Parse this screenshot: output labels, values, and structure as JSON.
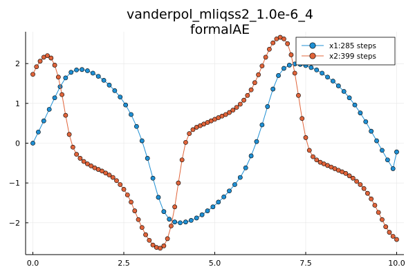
{
  "chart_data": {
    "type": "scatter",
    "title": "vanderpol_mliqss2_1.0e-6_4",
    "subtitle": "formalAE",
    "xlabel": "",
    "ylabel": "",
    "xlim": [
      -0.2,
      10.2
    ],
    "ylim": [
      -2.8,
      2.8
    ],
    "x_ticks": [
      0.0,
      2.5,
      5.0,
      7.5,
      10.0
    ],
    "x_tick_labels": [
      "0.0",
      "2.5",
      "5.0",
      "7.5",
      "10.0"
    ],
    "y_ticks": [
      -2,
      -1,
      0,
      1,
      2
    ],
    "y_tick_labels": [
      "−2",
      "−1",
      "0",
      "1",
      "2"
    ],
    "grid": true,
    "legend_position": "top-right",
    "series": [
      {
        "name": "x1:285 steps",
        "color": "#1f8fd3",
        "x": [
          0.0,
          0.15,
          0.3,
          0.45,
          0.6,
          0.75,
          0.9,
          1.05,
          1.2,
          1.35,
          1.5,
          1.65,
          1.8,
          1.95,
          2.1,
          2.25,
          2.4,
          2.55,
          2.7,
          2.85,
          3.0,
          3.15,
          3.3,
          3.45,
          3.6,
          3.75,
          3.9,
          4.05,
          4.2,
          4.35,
          4.5,
          4.65,
          4.8,
          4.95,
          5.1,
          5.25,
          5.4,
          5.55,
          5.7,
          5.85,
          6.0,
          6.15,
          6.3,
          6.45,
          6.6,
          6.75,
          6.9,
          7.05,
          7.2,
          7.35,
          7.5,
          7.65,
          7.8,
          7.95,
          8.1,
          8.25,
          8.4,
          8.55,
          8.7,
          8.85,
          9.0,
          9.15,
          9.3,
          9.45,
          9.6,
          9.75,
          9.9,
          10.0
        ],
        "values": [
          0.0,
          0.28,
          0.56,
          0.85,
          1.14,
          1.42,
          1.64,
          1.78,
          1.84,
          1.85,
          1.82,
          1.76,
          1.68,
          1.58,
          1.46,
          1.32,
          1.16,
          0.96,
          0.72,
          0.42,
          0.06,
          -0.38,
          -0.88,
          -1.36,
          -1.72,
          -1.91,
          -1.98,
          -2.0,
          -1.98,
          -1.94,
          -1.88,
          -1.8,
          -1.7,
          -1.6,
          -1.48,
          -1.35,
          -1.2,
          -1.04,
          -0.86,
          -0.62,
          -0.32,
          0.04,
          0.46,
          0.92,
          1.36,
          1.7,
          1.88,
          1.96,
          1.99,
          1.98,
          1.95,
          1.9,
          1.84,
          1.76,
          1.66,
          1.56,
          1.44,
          1.3,
          1.14,
          0.96,
          0.76,
          0.54,
          0.3,
          0.06,
          -0.18,
          -0.42,
          -0.64,
          -0.22
        ]
      },
      {
        "name": "x2:399 steps",
        "color": "#e0643a",
        "x": [
          0.0,
          0.1,
          0.2,
          0.3,
          0.4,
          0.5,
          0.6,
          0.7,
          0.8,
          0.9,
          1.0,
          1.1,
          1.2,
          1.3,
          1.4,
          1.5,
          1.6,
          1.7,
          1.8,
          1.9,
          2.0,
          2.1,
          2.2,
          2.3,
          2.4,
          2.5,
          2.6,
          2.7,
          2.8,
          2.9,
          3.0,
          3.1,
          3.2,
          3.3,
          3.4,
          3.5,
          3.6,
          3.7,
          3.8,
          3.9,
          4.0,
          4.1,
          4.2,
          4.3,
          4.4,
          4.5,
          4.6,
          4.7,
          4.8,
          4.9,
          5.0,
          5.1,
          5.2,
          5.3,
          5.4,
          5.5,
          5.6,
          5.7,
          5.8,
          5.9,
          6.0,
          6.1,
          6.2,
          6.3,
          6.4,
          6.5,
          6.6,
          6.7,
          6.8,
          6.9,
          7.0,
          7.1,
          7.2,
          7.3,
          7.4,
          7.5,
          7.6,
          7.7,
          7.8,
          7.9,
          8.0,
          8.1,
          8.2,
          8.3,
          8.4,
          8.5,
          8.6,
          8.7,
          8.8,
          8.9,
          9.0,
          9.1,
          9.2,
          9.3,
          9.4,
          9.5,
          9.6,
          9.7,
          9.8,
          9.9,
          10.0
        ],
        "values": [
          1.73,
          1.92,
          2.06,
          2.16,
          2.2,
          2.14,
          1.96,
          1.66,
          1.22,
          0.7,
          0.22,
          -0.1,
          -0.28,
          -0.38,
          -0.46,
          -0.52,
          -0.57,
          -0.62,
          -0.66,
          -0.7,
          -0.75,
          -0.8,
          -0.86,
          -0.94,
          -1.04,
          -1.16,
          -1.3,
          -1.48,
          -1.7,
          -1.92,
          -2.12,
          -2.3,
          -2.44,
          -2.56,
          -2.62,
          -2.64,
          -2.58,
          -2.4,
          -2.08,
          -1.6,
          -1.0,
          -0.42,
          0.02,
          0.24,
          0.34,
          0.4,
          0.44,
          0.48,
          0.52,
          0.56,
          0.6,
          0.64,
          0.68,
          0.72,
          0.77,
          0.83,
          0.9,
          0.98,
          1.08,
          1.2,
          1.34,
          1.52,
          1.72,
          1.94,
          2.16,
          2.36,
          2.52,
          2.62,
          2.66,
          2.62,
          2.5,
          2.22,
          1.76,
          1.2,
          0.62,
          0.14,
          -0.18,
          -0.34,
          -0.42,
          -0.48,
          -0.52,
          -0.56,
          -0.6,
          -0.64,
          -0.68,
          -0.72,
          -0.76,
          -0.82,
          -0.88,
          -0.96,
          -1.04,
          -1.14,
          -1.26,
          -1.4,
          -1.56,
          -1.74,
          -1.92,
          -2.1,
          -2.24,
          -2.34,
          -2.42
        ]
      }
    ]
  }
}
